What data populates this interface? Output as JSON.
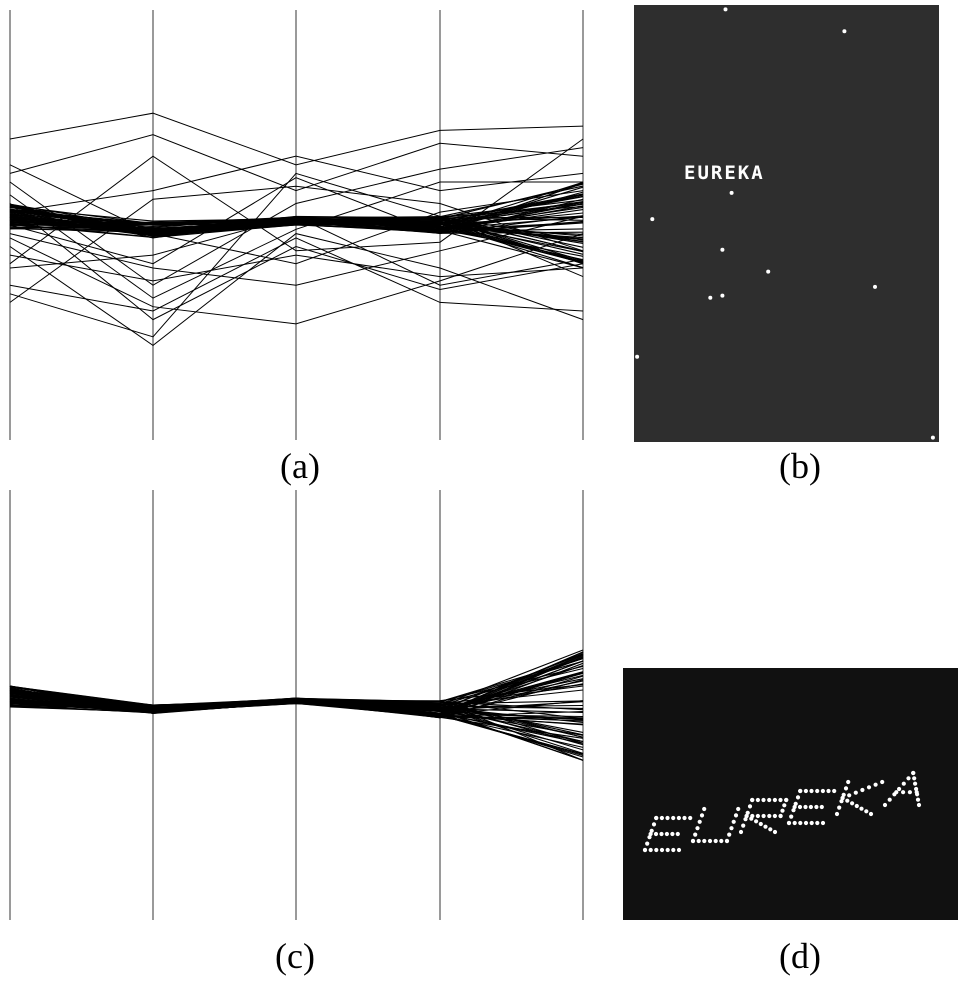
{
  "figure": {
    "captions": {
      "a": "(a)",
      "b": "(b)",
      "c": "(c)",
      "d": "(d)"
    }
  },
  "colors": {
    "line": "#000000",
    "axis": "#808080",
    "panel_b_bg": "#2e2e2e",
    "panel_d_bg": "#111111",
    "dot": "#ffffff"
  },
  "chart_data": [
    {
      "panel": "a",
      "type": "line",
      "subtype": "parallel-coordinates",
      "axes_count": 5,
      "ylim": [
        0,
        1
      ],
      "description_values": "each polyline = one data record across 5 parallel axes; values normalized top=1 bottom=0",
      "core_band": {
        "count": 60,
        "values": [
          0.52,
          0.49,
          0.51,
          0.5,
          0.5
        ],
        "spread": [
          0.03,
          0.02,
          0.01,
          0.02,
          0.1
        ]
      },
      "series": [
        {
          "values": [
            0.7,
            0.76,
            0.64,
            0.72,
            0.73
          ]
        },
        {
          "values": [
            0.62,
            0.71,
            0.58,
            0.69,
            0.66
          ]
        },
        {
          "values": [
            0.6,
            0.36,
            0.55,
            0.63,
            0.68
          ]
        },
        {
          "values": [
            0.57,
            0.33,
            0.49,
            0.6,
            0.6
          ]
        },
        {
          "values": [
            0.47,
            0.31,
            0.27,
            0.37,
            0.48
          ]
        },
        {
          "values": [
            0.45,
            0.22,
            0.48,
            0.4,
            0.28
          ]
        },
        {
          "values": [
            0.43,
            0.37,
            0.43,
            0.38,
            0.4
          ]
        },
        {
          "values": [
            0.4,
            0.43,
            0.52,
            0.36,
            0.42
          ]
        },
        {
          "values": [
            0.36,
            0.3,
            0.47,
            0.32,
            0.3
          ]
        },
        {
          "values": [
            0.34,
            0.24,
            0.62,
            0.52,
            0.38
          ]
        },
        {
          "values": [
            0.32,
            0.56,
            0.59,
            0.55,
            0.44
          ]
        },
        {
          "values": [
            0.41,
            0.66,
            0.44,
            0.46,
            0.7
          ]
        },
        {
          "values": [
            0.53,
            0.58,
            0.66,
            0.58,
            0.62
          ]
        },
        {
          "values": [
            0.5,
            0.41,
            0.61,
            0.48,
            0.56
          ]
        },
        {
          "values": [
            0.48,
            0.4,
            0.36,
            0.44,
            0.52
          ]
        },
        {
          "values": [
            0.55,
            0.28,
            0.45,
            0.35,
            0.41
          ]
        },
        {
          "values": [
            0.64,
            0.48,
            0.41,
            0.53,
            0.58
          ]
        }
      ]
    },
    {
      "panel": "b",
      "type": "scatter",
      "xlim": [
        0,
        1
      ],
      "ylim": [
        0,
        1
      ],
      "points": [
        {
          "x": 0.3,
          "y": 0.99
        },
        {
          "x": 0.69,
          "y": 0.94
        },
        {
          "x": 0.32,
          "y": 0.57
        },
        {
          "x": 0.06,
          "y": 0.51
        },
        {
          "x": 0.29,
          "y": 0.44
        },
        {
          "x": 0.44,
          "y": 0.39
        },
        {
          "x": 0.79,
          "y": 0.355
        },
        {
          "x": 0.25,
          "y": 0.33
        },
        {
          "x": 0.29,
          "y": 0.335
        },
        {
          "x": 0.01,
          "y": 0.195
        },
        {
          "x": 0.98,
          "y": 0.01
        }
      ],
      "annotations": [
        {
          "text": "EUREKA"
        }
      ]
    },
    {
      "panel": "c",
      "type": "line",
      "subtype": "parallel-coordinates",
      "axes_count": 5,
      "ylim": [
        0,
        1
      ],
      "core_band": {
        "count": 70,
        "values": [
          0.52,
          0.49,
          0.51,
          0.49,
          0.5
        ],
        "spread": [
          0.025,
          0.01,
          0.007,
          0.02,
          0.13
        ]
      }
    },
    {
      "panel": "d",
      "type": "scatter",
      "annotations": [
        {
          "text": "EUREKA"
        }
      ]
    }
  ]
}
